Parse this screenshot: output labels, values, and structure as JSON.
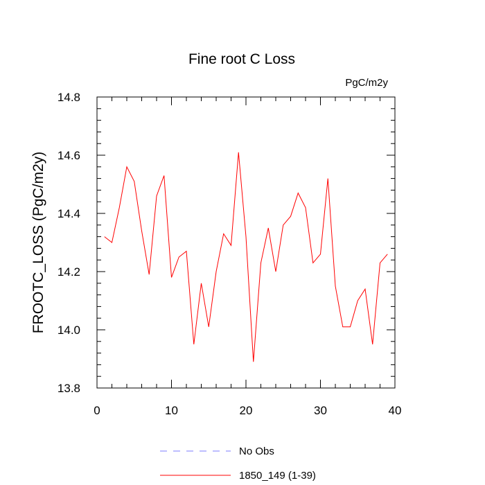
{
  "chart_data": {
    "type": "line",
    "title": "Fine root C Loss",
    "units_label": "PgC/m2y",
    "xlabel": "",
    "ylabel": "FROOTC_LOSS  (PgC/m2y)",
    "xlim": [
      0,
      40
    ],
    "ylim": [
      13.8,
      14.8
    ],
    "x_ticks": [
      0,
      10,
      20,
      30,
      40
    ],
    "x_tick_labels": [
      "0",
      "10",
      "20",
      "30",
      "40"
    ],
    "y_ticks": [
      13.8,
      14.0,
      14.2,
      14.4,
      14.6,
      14.8
    ],
    "y_tick_labels": [
      "13.8",
      "14.0",
      "14.2",
      "14.4",
      "14.6",
      "14.8"
    ],
    "grid": false,
    "legend_position": "bottom",
    "series": [
      {
        "name": "No Obs",
        "color": "#7b7bff",
        "dash": "dashed",
        "x": [],
        "values": []
      },
      {
        "name": "1850_149 (1-39)",
        "color": "#ff0000",
        "dash": "solid",
        "x": [
          1,
          2,
          3,
          4,
          5,
          6,
          7,
          8,
          9,
          10,
          11,
          12,
          13,
          14,
          15,
          16,
          17,
          18,
          19,
          20,
          21,
          22,
          23,
          24,
          25,
          26,
          27,
          28,
          29,
          30,
          31,
          32,
          33,
          34,
          35,
          36,
          37,
          38,
          39
        ],
        "values": [
          14.32,
          14.3,
          14.42,
          14.56,
          14.51,
          14.34,
          14.19,
          14.46,
          14.53,
          14.18,
          14.25,
          14.27,
          13.95,
          14.16,
          14.01,
          14.2,
          14.33,
          14.29,
          14.61,
          14.32,
          13.89,
          14.23,
          14.35,
          14.2,
          14.36,
          14.39,
          14.47,
          14.42,
          14.23,
          14.26,
          14.52,
          14.15,
          14.01,
          14.01,
          14.1,
          14.14,
          13.95,
          14.23,
          14.26
        ]
      }
    ]
  }
}
